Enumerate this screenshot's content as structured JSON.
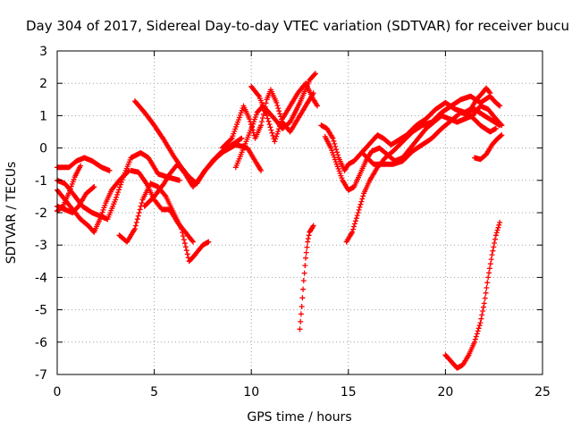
{
  "chart_data": {
    "type": "scatter",
    "title": "Day 304 of 2017, Sidereal Day-to-day VTEC variation (SDTVAR) for receiver bucu",
    "xlabel": "GPS time / hours",
    "ylabel": "SDTVAR / TECUs",
    "xlim": [
      0,
      25
    ],
    "ylim": [
      -7,
      3
    ],
    "x_ticks": [
      0,
      5,
      10,
      15,
      20,
      25
    ],
    "y_ticks": [
      -7,
      -6,
      -5,
      -4,
      -3,
      -2,
      -1,
      0,
      1,
      2,
      3
    ],
    "x_tick_labels": [
      "0",
      "5",
      "10",
      "15",
      "20",
      "25"
    ],
    "y_tick_labels": [
      "-7",
      "-6",
      "-5",
      "-4",
      "-3",
      "-2",
      "-1",
      "0",
      "1",
      "2",
      "3"
    ],
    "grid": true,
    "marker": "+",
    "marker_color": "#ff0000",
    "tracks": [
      [
        [
          0,
          -0.6
        ],
        [
          0.6,
          -0.6
        ],
        [
          1,
          -0.4
        ],
        [
          1.4,
          -0.3
        ],
        [
          1.8,
          -0.4
        ],
        [
          2.3,
          -0.6
        ],
        [
          2.7,
          -0.7
        ]
      ],
      [
        [
          0,
          -1.3
        ],
        [
          0.4,
          -1.6
        ],
        [
          0.8,
          -1.9
        ],
        [
          1.2,
          -2.2
        ],
        [
          1.6,
          -2.4
        ],
        [
          1.9,
          -2.6
        ],
        [
          2.2,
          -2.2
        ],
        [
          2.5,
          -1.7
        ],
        [
          2.8,
          -1.3
        ],
        [
          3.2,
          -1.0
        ],
        [
          3.7,
          -0.7
        ]
      ],
      [
        [
          0,
          -1.0
        ],
        [
          0.4,
          -1.1
        ],
        [
          0.8,
          -1.4
        ],
        [
          1.3,
          -1.8
        ],
        [
          1.8,
          -2.0
        ],
        [
          2.2,
          -2.1
        ],
        [
          2.6,
          -2.2
        ],
        [
          3.0,
          -1.6
        ],
        [
          3.4,
          -0.9
        ],
        [
          3.8,
          -0.3
        ],
        [
          4.3,
          -0.15
        ],
        [
          4.7,
          -0.3
        ],
        [
          5.2,
          -0.8
        ],
        [
          5.7,
          -0.9
        ],
        [
          6.3,
          -1.0
        ]
      ],
      [
        [
          0,
          -1.8
        ],
        [
          0.4,
          -1.9
        ],
        [
          0.8,
          -2.0
        ],
        [
          1.1,
          -1.8
        ],
        [
          1.5,
          -1.4
        ],
        [
          1.9,
          -1.2
        ]
      ],
      [
        [
          0,
          -1.95
        ],
        [
          0.3,
          -1.8
        ],
        [
          0.6,
          -1.4
        ],
        [
          0.9,
          -0.9
        ],
        [
          1.2,
          -0.55
        ]
      ],
      [
        [
          3.2,
          -2.7
        ],
        [
          3.6,
          -2.9
        ],
        [
          4.0,
          -2.5
        ],
        [
          4.4,
          -1.6
        ],
        [
          4.8,
          -1.1
        ],
        [
          5.2,
          -1.2
        ],
        [
          5.6,
          -1.5
        ],
        [
          6.0,
          -2.0
        ],
        [
          6.4,
          -2.5
        ],
        [
          6.8,
          -3.5
        ],
        [
          7.1,
          -3.3
        ],
        [
          7.5,
          -3.0
        ],
        [
          7.8,
          -2.9
        ]
      ],
      [
        [
          3.8,
          -0.7
        ],
        [
          4.2,
          -0.75
        ],
        [
          4.6,
          -1.1
        ],
        [
          5.0,
          -1.6
        ],
        [
          5.4,
          -1.9
        ],
        [
          5.8,
          -1.9
        ],
        [
          6.2,
          -2.3
        ],
        [
          6.6,
          -2.6
        ],
        [
          7.0,
          -2.9
        ]
      ],
      [
        [
          4.0,
          1.45
        ],
        [
          4.5,
          1.1
        ],
        [
          5.0,
          0.7
        ],
        [
          5.5,
          0.25
        ],
        [
          6.0,
          -0.25
        ],
        [
          6.4,
          -0.6
        ],
        [
          6.8,
          -0.9
        ],
        [
          7.2,
          -1.1
        ],
        [
          7.6,
          -0.7
        ],
        [
          8.2,
          -0.3
        ],
        [
          8.6,
          -0.1
        ],
        [
          9.2,
          0.1
        ],
        [
          9.8,
          0.0
        ],
        [
          10.2,
          -0.4
        ],
        [
          10.5,
          -0.7
        ]
      ],
      [
        [
          4.5,
          -1.8
        ],
        [
          5.0,
          -1.5
        ],
        [
          5.5,
          -1.1
        ],
        [
          5.8,
          -0.8
        ],
        [
          6.2,
          -0.5
        ],
        [
          6.6,
          -0.8
        ],
        [
          7.0,
          -1.2
        ],
        [
          7.5,
          -0.8
        ],
        [
          8.0,
          -0.4
        ],
        [
          8.5,
          -0.1
        ],
        [
          9.0,
          0.1
        ],
        [
          9.5,
          0.3
        ]
      ],
      [
        [
          8.5,
          0.0
        ],
        [
          9.0,
          0.3
        ],
        [
          9.3,
          0.8
        ],
        [
          9.6,
          1.3
        ],
        [
          9.9,
          0.9
        ],
        [
          10.2,
          0.3
        ],
        [
          10.5,
          0.7
        ],
        [
          10.8,
          1.5
        ],
        [
          11.0,
          1.8
        ],
        [
          11.3,
          1.4
        ],
        [
          11.6,
          0.8
        ],
        [
          12.0,
          0.5
        ],
        [
          12.4,
          0.9
        ],
        [
          12.8,
          1.3
        ],
        [
          13.2,
          1.7
        ]
      ],
      [
        [
          9.2,
          -0.6
        ],
        [
          9.6,
          0.0
        ],
        [
          10.0,
          0.6
        ],
        [
          10.3,
          1.1
        ],
        [
          10.6,
          1.3
        ],
        [
          10.9,
          1.1
        ],
        [
          11.2,
          0.9
        ],
        [
          11.6,
          0.6
        ],
        [
          12.0,
          0.8
        ],
        [
          12.5,
          1.4
        ],
        [
          13.0,
          2.1
        ],
        [
          13.3,
          2.3
        ]
      ],
      [
        [
          10.0,
          1.9
        ],
        [
          10.4,
          1.6
        ],
        [
          10.8,
          1.0
        ],
        [
          11.2,
          0.2
        ],
        [
          11.6,
          0.9
        ],
        [
          12.0,
          1.3
        ],
        [
          12.4,
          1.7
        ],
        [
          12.8,
          2.0
        ],
        [
          13.2,
          1.5
        ],
        [
          13.4,
          1.3
        ]
      ],
      [
        [
          12.5,
          -5.6
        ],
        [
          12.6,
          -4.9
        ],
        [
          12.7,
          -4.1
        ],
        [
          12.8,
          -3.4
        ],
        [
          12.9,
          -2.9
        ],
        [
          13.0,
          -2.6
        ],
        [
          13.2,
          -2.4
        ]
      ],
      [
        [
          13.6,
          0.7
        ],
        [
          13.9,
          0.6
        ],
        [
          14.2,
          0.3
        ],
        [
          14.5,
          -0.3
        ],
        [
          14.8,
          -0.7
        ],
        [
          15.0,
          -0.5
        ],
        [
          15.3,
          -0.4
        ],
        [
          15.6,
          -0.2
        ],
        [
          15.9,
          0.0
        ],
        [
          16.2,
          0.2
        ],
        [
          16.5,
          0.4
        ],
        [
          16.8,
          0.3
        ],
        [
          17.2,
          0.1
        ],
        [
          17.6,
          0.25
        ],
        [
          18.0,
          0.4
        ],
        [
          18.5,
          0.7
        ],
        [
          19.0,
          0.9
        ],
        [
          19.5,
          1.2
        ],
        [
          20.0,
          1.4
        ],
        [
          20.5,
          1.2
        ],
        [
          21.0,
          1.1
        ],
        [
          21.5,
          1.2
        ],
        [
          22.0,
          1.0
        ],
        [
          22.4,
          0.85
        ],
        [
          22.8,
          0.7
        ]
      ],
      [
        [
          13.8,
          0.35
        ],
        [
          14.1,
          0.0
        ],
        [
          14.4,
          -0.5
        ],
        [
          14.7,
          -1.0
        ],
        [
          15.0,
          -1.3
        ],
        [
          15.3,
          -1.2
        ],
        [
          15.6,
          -0.8
        ],
        [
          15.9,
          -0.4
        ],
        [
          16.2,
          -0.1
        ],
        [
          16.6,
          0.0
        ],
        [
          17.0,
          -0.2
        ],
        [
          17.4,
          -0.4
        ],
        [
          17.8,
          -0.3
        ],
        [
          18.2,
          0.0
        ],
        [
          18.6,
          0.3
        ],
        [
          19.0,
          0.6
        ],
        [
          19.4,
          0.8
        ],
        [
          19.8,
          1.0
        ],
        [
          20.2,
          0.9
        ],
        [
          20.6,
          0.8
        ],
        [
          21.0,
          0.9
        ],
        [
          21.4,
          1.0
        ],
        [
          21.8,
          1.3
        ],
        [
          22.2,
          1.2
        ],
        [
          22.6,
          0.9
        ],
        [
          22.9,
          0.7
        ]
      ],
      [
        [
          14.9,
          -2.9
        ],
        [
          15.2,
          -2.6
        ],
        [
          15.5,
          -2.0
        ],
        [
          15.8,
          -1.4
        ],
        [
          16.1,
          -1.0
        ],
        [
          16.5,
          -0.6
        ],
        [
          16.9,
          -0.3
        ],
        [
          17.3,
          -0.1
        ],
        [
          17.8,
          0.2
        ],
        [
          18.3,
          0.5
        ],
        [
          18.8,
          0.7
        ],
        [
          19.3,
          0.8
        ],
        [
          19.8,
          1.1
        ],
        [
          20.3,
          1.3
        ],
        [
          20.8,
          1.5
        ],
        [
          21.3,
          1.6
        ],
        [
          21.8,
          1.4
        ],
        [
          22.3,
          1.6
        ],
        [
          22.6,
          1.4
        ],
        [
          22.8,
          1.3
        ]
      ],
      [
        [
          15.8,
          -0.2
        ],
        [
          16.3,
          -0.5
        ],
        [
          16.8,
          -0.5
        ],
        [
          17.3,
          -0.5
        ],
        [
          17.8,
          -0.4
        ],
        [
          18.3,
          -0.1
        ],
        [
          18.8,
          0.1
        ],
        [
          19.3,
          0.3
        ],
        [
          19.8,
          0.6
        ],
        [
          20.3,
          0.85
        ],
        [
          20.8,
          1.1
        ],
        [
          21.3,
          1.0
        ],
        [
          21.8,
          0.7
        ],
        [
          22.3,
          0.5
        ],
        [
          22.6,
          0.6
        ]
      ],
      [
        [
          21.5,
          -0.3
        ],
        [
          21.8,
          -0.35
        ],
        [
          22.1,
          -0.2
        ],
        [
          22.4,
          0.1
        ],
        [
          22.7,
          0.3
        ],
        [
          22.9,
          0.4
        ]
      ],
      [
        [
          21.0,
          1.1
        ],
        [
          21.3,
          1.2
        ],
        [
          21.6,
          1.5
        ],
        [
          21.9,
          1.7
        ],
        [
          22.1,
          1.85
        ],
        [
          22.3,
          1.7
        ]
      ],
      [
        [
          20.0,
          -6.4
        ],
        [
          20.3,
          -6.6
        ],
        [
          20.6,
          -6.8
        ],
        [
          20.9,
          -6.7
        ],
        [
          21.2,
          -6.4
        ],
        [
          21.5,
          -6.0
        ],
        [
          21.8,
          -5.4
        ],
        [
          22.0,
          -4.8
        ],
        [
          22.2,
          -4.0
        ],
        [
          22.4,
          -3.3
        ],
        [
          22.6,
          -2.7
        ],
        [
          22.8,
          -2.3
        ]
      ]
    ]
  }
}
